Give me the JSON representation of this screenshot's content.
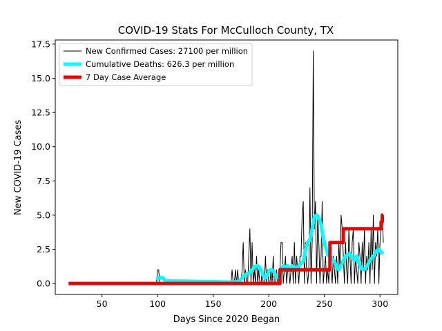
{
  "chart_data": {
    "type": "line",
    "title": "COVID-19 Stats For McCulloch County, TX",
    "xlabel": "Days Since 2020 Began",
    "ylabel": "New COVID-19 Cases",
    "xlim": [
      8,
      316
    ],
    "ylim": [
      -0.8,
      17.8
    ],
    "xticks": [
      50,
      100,
      150,
      200,
      250,
      300
    ],
    "xtick_labels": [
      "50",
      "100",
      "150",
      "200",
      "250",
      "300"
    ],
    "yticks": [
      0,
      2.5,
      5,
      7.5,
      10,
      12.5,
      15,
      17.5
    ],
    "ytick_labels": [
      "0.0",
      "2.5",
      "5.0",
      "7.5",
      "10.0",
      "12.5",
      "15.0",
      "17.5"
    ],
    "grid": false,
    "legend_position": "top-left",
    "series": [
      {
        "name": "New Confirmed Cases: 27100 per million",
        "color": "#000000",
        "x": [
          20,
          99,
          100,
          101,
          102,
          103,
          104,
          166,
          167,
          168,
          169,
          170,
          171,
          172,
          173,
          174,
          175,
          176,
          177,
          178,
          179,
          180,
          181,
          182,
          183,
          184,
          185,
          186,
          187,
          188,
          189,
          190,
          191,
          192,
          193,
          194,
          195,
          196,
          197,
          198,
          199,
          200,
          201,
          202,
          203,
          204,
          205,
          206,
          207,
          208,
          209,
          210,
          211,
          212,
          213,
          214,
          215,
          216,
          217,
          218,
          219,
          220,
          221,
          222,
          223,
          224,
          225,
          226,
          227,
          228,
          229,
          230,
          231,
          232,
          233,
          234,
          235,
          236,
          237,
          238,
          239,
          240,
          241,
          242,
          243,
          244,
          245,
          246,
          247,
          248,
          249,
          250,
          251,
          252,
          253,
          254,
          255,
          256,
          257,
          258,
          259,
          260,
          261,
          262,
          263,
          264,
          265,
          266,
          267,
          268,
          269,
          270,
          271,
          272,
          273,
          274,
          275,
          276,
          277,
          278,
          279,
          280,
          281,
          282,
          283,
          284,
          285,
          286,
          287,
          288,
          289,
          290,
          291,
          292,
          293,
          294,
          295,
          296,
          297,
          298,
          299,
          300,
          301,
          302,
          303
        ],
        "y": [
          0,
          0,
          1,
          1,
          0,
          0,
          0,
          0,
          1,
          0,
          0,
          1,
          0,
          1,
          0,
          0,
          0,
          1,
          3,
          0,
          1,
          0,
          0,
          2,
          4,
          0,
          3,
          0,
          1,
          0,
          2,
          0,
          1,
          0,
          0,
          1,
          0,
          0,
          2,
          0,
          1,
          0,
          0,
          1,
          0,
          2,
          0,
          0,
          1,
          0,
          0,
          1,
          3,
          3,
          0,
          1,
          2,
          0,
          1,
          1,
          0,
          1,
          2,
          0,
          3,
          0,
          2,
          1,
          0,
          2,
          2,
          5,
          6,
          0,
          3,
          1,
          0,
          1,
          7,
          0,
          3,
          17,
          4,
          6,
          0,
          5,
          3,
          0,
          2,
          6,
          0,
          1,
          2,
          0,
          1,
          0,
          3,
          1,
          0,
          2,
          1,
          0,
          2,
          0,
          3,
          1,
          5,
          4,
          2,
          0,
          3,
          1,
          0,
          4,
          2,
          0,
          3,
          4,
          0,
          2,
          1,
          0,
          3,
          2,
          0,
          3,
          1,
          4,
          0,
          2,
          1,
          3,
          0,
          4,
          1,
          5,
          0,
          3,
          2,
          4,
          0,
          3,
          4,
          5,
          3
        ]
      },
      {
        "name": "Cumulative Deaths: 626.3 per million",
        "color": "#00ffff",
        "x": [
          99,
          101,
          103,
          105,
          107,
          170,
          174,
          177,
          180,
          183,
          185,
          187,
          189,
          191,
          193,
          195,
          197,
          199,
          201,
          203,
          205,
          207,
          209,
          211,
          213,
          215,
          217,
          219,
          221,
          223,
          225,
          227,
          229,
          231,
          233,
          235,
          237,
          239,
          241,
          243,
          245,
          247,
          249,
          251,
          253,
          255,
          257,
          259,
          261,
          263,
          265,
          267,
          269,
          271,
          273,
          275,
          277,
          279,
          281,
          283,
          285,
          287,
          289,
          291,
          293,
          295,
          297,
          299,
          301,
          303
        ],
        "y": [
          0.3,
          0.4,
          0.45,
          0.4,
          0.2,
          0.1,
          0.2,
          0.5,
          0.7,
          0.8,
          1.0,
          1.2,
          1.3,
          1.25,
          1.0,
          0.6,
          0.4,
          0.7,
          1.0,
          1.0,
          0.8,
          0.5,
          0.4,
          0.9,
          1.3,
          1.2,
          1.3,
          1.0,
          1.3,
          1.2,
          1.1,
          1.3,
          1.5,
          1.6,
          2.5,
          3.0,
          3.2,
          4.0,
          4.9,
          5.0,
          4.8,
          4.3,
          3.3,
          2.7,
          2.1,
          2.0,
          1.8,
          1.6,
          1.2,
          1.0,
          1.3,
          1.7,
          2.0,
          2.1,
          2.2,
          1.9,
          1.7,
          2.0,
          1.5,
          1.1,
          1.0,
          1.1,
          1.4,
          1.7,
          1.9,
          2.1,
          2.4,
          2.5,
          2.3,
          2.2
        ]
      },
      {
        "name": "7 Day Case Average",
        "color": "#ee0000",
        "x": [
          20,
          210,
          210,
          255,
          255,
          267,
          267,
          301,
          301,
          302,
          302,
          303
        ],
        "y": [
          0,
          0,
          1,
          1,
          3,
          3,
          4,
          4,
          4.5,
          4.5,
          5,
          5
        ]
      }
    ]
  }
}
